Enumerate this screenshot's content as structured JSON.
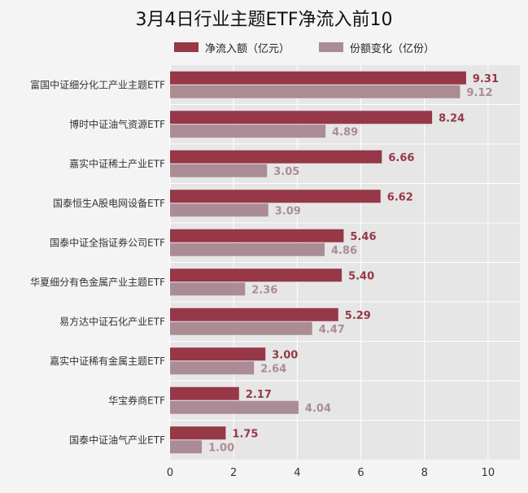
{
  "chart_data": {
    "type": "bar",
    "orientation": "horizontal",
    "title": "3月4日行业主题ETF净流入前10",
    "categories": [
      "富国中证细分化工产业主题ETF",
      "博时中证油气资源ETF",
      "嘉实中证稀土产业ETF",
      "国泰恒生A股电网设备ETF",
      "国泰中证全指证券公司ETF",
      "华夏细分有色金属产业主题ETF",
      "易方达中证石化产业ETF",
      "嘉实中证稀有金属主题ETF",
      "华宝券商ETF",
      "国泰中证油气产业ETF"
    ],
    "series": [
      {
        "name": "净流入额（亿元）",
        "color": "#963847",
        "values": [
          9.31,
          8.24,
          6.66,
          6.62,
          5.46,
          5.4,
          5.29,
          3.0,
          2.17,
          1.75
        ],
        "labels": [
          "9.31",
          "8.24",
          "6.66",
          "6.62",
          "5.46",
          "5.40",
          "5.29",
          "3.00",
          "2.17",
          "1.75"
        ]
      },
      {
        "name": "份额变化（亿份）",
        "color": "#ab8c95",
        "values": [
          9.12,
          4.89,
          3.05,
          3.09,
          4.86,
          2.36,
          4.47,
          2.64,
          4.04,
          1.0
        ],
        "labels": [
          "9.12",
          "4.89",
          "3.05",
          "3.09",
          "4.86",
          "2.36",
          "4.47",
          "2.64",
          "4.04",
          "1.00"
        ]
      }
    ],
    "xlim": [
      0,
      11
    ],
    "xticks": [
      "0",
      "2",
      "4",
      "6",
      "8",
      "10"
    ],
    "grid": true,
    "legend_position": "top"
  }
}
